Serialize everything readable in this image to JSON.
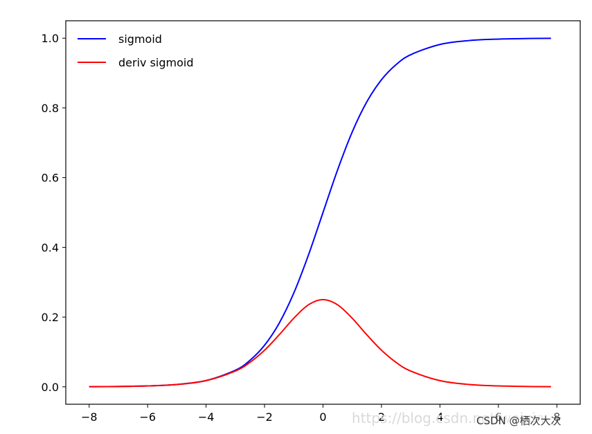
{
  "chart_data": {
    "type": "line",
    "xlim": [
      -8.8,
      8.8
    ],
    "ylim": [
      -0.05,
      1.05
    ],
    "xticks": [
      -8,
      -6,
      -4,
      -2,
      0,
      2,
      4,
      6,
      8
    ],
    "xtick_labels": [
      "−8",
      "−6",
      "−4",
      "−2",
      "0",
      "2",
      "4",
      "6",
      "8"
    ],
    "yticks": [
      0.0,
      0.2,
      0.4,
      0.6,
      0.8,
      1.0
    ],
    "ytick_labels": [
      "0.0",
      "0.2",
      "0.4",
      "0.6",
      "0.8",
      "1.0"
    ],
    "grid": false,
    "legend_position": "upper left",
    "x": [
      -8,
      -7,
      -6,
      -5,
      -4,
      -3,
      -2.5,
      -2,
      -1.5,
      -1,
      -0.5,
      0,
      0.5,
      1,
      1.5,
      2,
      2.5,
      3,
      4,
      5,
      6,
      7,
      7.8
    ],
    "series": [
      {
        "name": "sigmoid",
        "color": "#0000ff",
        "values": [
          0.0003,
          0.0009,
          0.0025,
          0.0067,
          0.018,
          0.0474,
          0.0759,
          0.1192,
          0.1824,
          0.2689,
          0.3775,
          0.5,
          0.6225,
          0.7311,
          0.8176,
          0.8808,
          0.9241,
          0.9526,
          0.982,
          0.9933,
          0.9975,
          0.9991,
          0.9996
        ]
      },
      {
        "name": "deriv sigmoid",
        "color": "#ff0000",
        "values": [
          0.0003,
          0.0009,
          0.0025,
          0.0066,
          0.0177,
          0.0452,
          0.0701,
          0.105,
          0.1491,
          0.1966,
          0.235,
          0.25,
          0.235,
          0.1966,
          0.1491,
          0.105,
          0.0701,
          0.0452,
          0.0177,
          0.0066,
          0.0025,
          0.0009,
          0.0004
        ]
      }
    ]
  },
  "watermark": {
    "url_text": "https://blog.csdn.net/weixin",
    "brand_text": "CSDN @栖次大次"
  }
}
